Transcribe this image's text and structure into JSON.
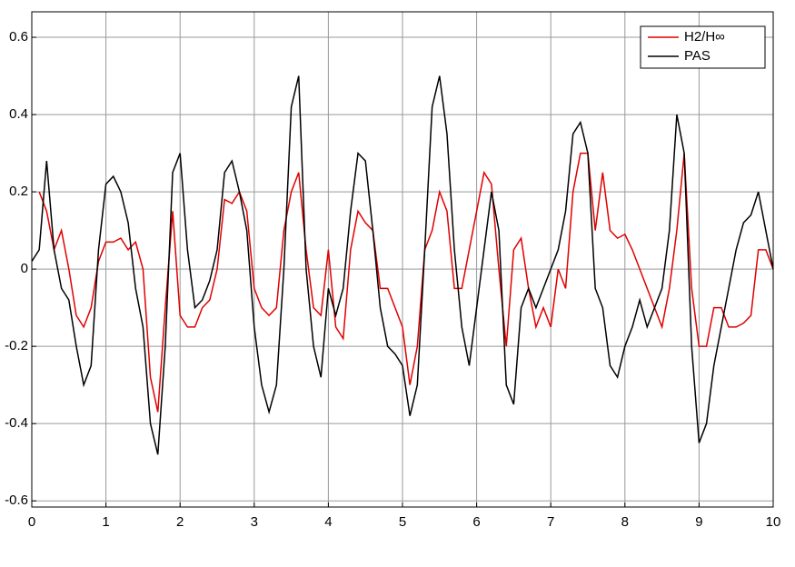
{
  "chart_data": {
    "type": "line",
    "x": [
      0,
      0.1,
      0.2,
      0.3,
      0.4,
      0.5,
      0.6,
      0.7,
      0.8,
      0.9,
      1,
      1.1,
      1.2,
      1.3,
      1.4,
      1.5,
      1.6,
      1.7,
      1.8,
      1.9,
      2,
      2.1,
      2.2,
      2.3,
      2.4,
      2.5,
      2.6,
      2.7,
      2.8,
      2.9,
      3,
      3.1,
      3.2,
      3.3,
      3.4,
      3.5,
      3.6,
      3.7,
      3.8,
      3.9,
      4,
      4.1,
      4.2,
      4.3,
      4.4,
      4.5,
      4.6,
      4.7,
      4.8,
      4.9,
      5,
      5.1,
      5.2,
      5.3,
      5.4,
      5.5,
      5.6,
      5.7,
      5.8,
      5.9,
      6,
      6.1,
      6.2,
      6.3,
      6.4,
      6.5,
      6.6,
      6.7,
      6.8,
      6.9,
      7,
      7.1,
      7.2,
      7.3,
      7.4,
      7.5,
      7.6,
      7.7,
      7.8,
      7.9,
      8,
      8.1,
      8.2,
      8.3,
      8.4,
      8.5,
      8.6,
      8.7,
      8.8,
      8.9,
      9,
      9.1,
      9.2,
      9.3,
      9.4,
      9.5,
      9.6,
      9.7,
      9.8,
      9.9,
      10
    ],
    "series": [
      {
        "name": "H2/H∞",
        "color": "#e00000",
        "values": [
          null,
          0.2,
          0.15,
          0.05,
          0.1,
          0,
          -0.12,
          -0.15,
          -0.1,
          0.02,
          0.07,
          0.07,
          0.08,
          0.05,
          0.07,
          0,
          -0.28,
          -0.37,
          -0.1,
          0.15,
          -0.12,
          -0.15,
          -0.15,
          -0.1,
          -0.08,
          0,
          0.18,
          0.17,
          0.2,
          0.15,
          -0.05,
          -0.1,
          -0.12,
          -0.1,
          0.1,
          0.2,
          0.25,
          0.05,
          -0.1,
          -0.12,
          0.05,
          -0.15,
          -0.18,
          0.05,
          0.15,
          0.12,
          0.1,
          -0.05,
          -0.05,
          -0.1,
          -0.15,
          -0.3,
          -0.2,
          0.05,
          0.1,
          0.2,
          0.15,
          -0.05,
          -0.05,
          0.05,
          0.15,
          0.25,
          0.22,
          0,
          -0.2,
          0.05,
          0.08,
          -0.05,
          -0.15,
          -0.1,
          -0.15,
          0,
          -0.05,
          0.2,
          0.3,
          0.3,
          0.1,
          0.25,
          0.1,
          0.08,
          0.09,
          0.05,
          0,
          -0.05,
          -0.1,
          -0.15,
          -0.05,
          0.1,
          0.3,
          -0.05,
          -0.2,
          -0.2,
          -0.1,
          -0.1,
          -0.15,
          -0.15,
          -0.14,
          -0.12,
          0.05,
          0.05,
          0
        ]
      },
      {
        "name": "PAS",
        "color": "#000000",
        "values": [
          0.02,
          0.05,
          0.28,
          0.05,
          -0.05,
          -0.08,
          -0.2,
          -0.3,
          -0.25,
          0.05,
          0.22,
          0.24,
          0.2,
          0.12,
          -0.05,
          -0.15,
          -0.4,
          -0.48,
          -0.2,
          0.25,
          0.3,
          0.05,
          -0.1,
          -0.08,
          -0.03,
          0.05,
          0.25,
          0.28,
          0.2,
          0.1,
          -0.15,
          -0.3,
          -0.37,
          -0.3,
          0,
          0.42,
          0.5,
          0,
          -0.2,
          -0.28,
          -0.05,
          -0.12,
          -0.05,
          0.15,
          0.3,
          0.28,
          0.1,
          -0.1,
          -0.2,
          -0.22,
          -0.25,
          -0.38,
          -0.3,
          0.05,
          0.42,
          0.5,
          0.35,
          0.05,
          -0.15,
          -0.25,
          -0.1,
          0.05,
          0.2,
          0.1,
          -0.3,
          -0.35,
          -0.1,
          -0.05,
          -0.1,
          -0.05,
          0,
          0.05,
          0.15,
          0.35,
          0.38,
          0.3,
          -0.05,
          -0.1,
          -0.25,
          -0.28,
          -0.2,
          -0.15,
          -0.08,
          -0.15,
          -0.1,
          -0.05,
          0.1,
          0.4,
          0.3,
          -0.2,
          -0.45,
          -0.4,
          -0.25,
          -0.15,
          -0.05,
          0.05,
          0.12,
          0.14,
          0.2,
          0.1,
          0
        ]
      }
    ],
    "xlim": [
      0,
      10
    ],
    "xticks": [
      0,
      1,
      2,
      3,
      4,
      5,
      6,
      7,
      8,
      9,
      10
    ],
    "ylim": [
      -0.616,
      0.666
    ],
    "yticks": [
      -0.6,
      -0.4,
      -0.2,
      0,
      0.2,
      0.4,
      0.6
    ],
    "grid": true,
    "legend": "upper-right"
  }
}
